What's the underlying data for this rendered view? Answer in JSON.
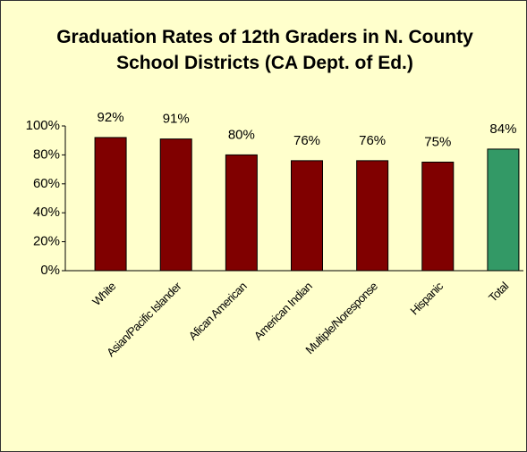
{
  "chart_data": {
    "type": "bar",
    "title": "Graduation Rates of 12th Graders in N. County School Districts (CA Dept. of Ed.)",
    "categories": [
      "White",
      "Asian/Pacific Islander",
      "Afican American",
      "American Indian",
      "Multiple/Noresponse",
      "Hispanic",
      "Total"
    ],
    "values": [
      92,
      91,
      80,
      76,
      76,
      75,
      84
    ],
    "value_labels": [
      "92%",
      "91%",
      "80%",
      "76%",
      "76%",
      "75%",
      "84%"
    ],
    "colors": [
      "#800000",
      "#800000",
      "#800000",
      "#800000",
      "#800000",
      "#800000",
      "#339966"
    ],
    "ylim": [
      0,
      100
    ],
    "yticks": [
      {
        "value": 0,
        "label": "0%"
      },
      {
        "value": 20,
        "label": "20%"
      },
      {
        "value": 40,
        "label": "40%"
      },
      {
        "value": 60,
        "label": "60%"
      },
      {
        "value": 80,
        "label": "80%"
      },
      {
        "value": 100,
        "label": "100%"
      }
    ],
    "grid": false
  }
}
